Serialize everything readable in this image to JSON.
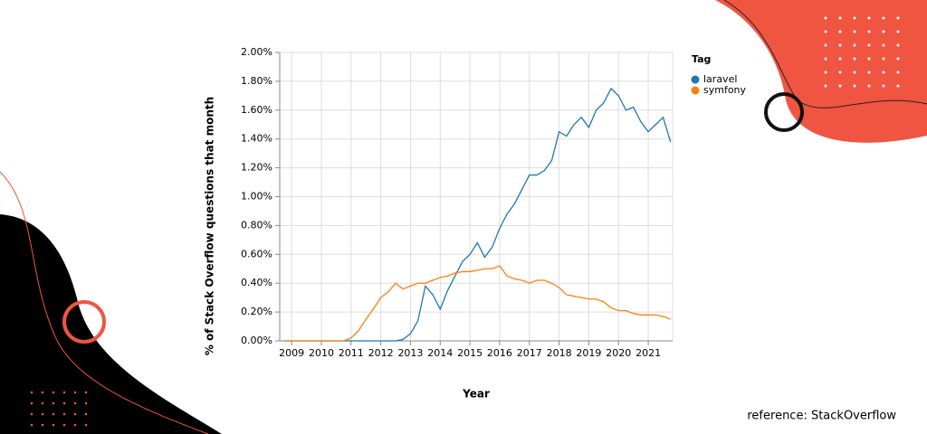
{
  "chart_data": {
    "type": "line",
    "y_label": "% of Stack Overflow questions that month",
    "x_label": "Year",
    "legend_title": "Tag",
    "legend_position": "right",
    "grid": true,
    "x": [
      2008.75,
      2009,
      2009.25,
      2009.5,
      2009.75,
      2010,
      2010.25,
      2010.5,
      2010.75,
      2011,
      2011.25,
      2011.5,
      2011.75,
      2012,
      2012.25,
      2012.5,
      2012.75,
      2013,
      2013.25,
      2013.5,
      2013.75,
      2014,
      2014.25,
      2014.5,
      2014.75,
      2015,
      2015.25,
      2015.5,
      2015.75,
      2016,
      2016.25,
      2016.5,
      2016.75,
      2017,
      2017.25,
      2017.5,
      2017.75,
      2018,
      2018.25,
      2018.5,
      2018.75,
      2019,
      2019.25,
      2019.5,
      2019.75,
      2020,
      2020.25,
      2020.5,
      2020.75,
      2021,
      2021.25,
      2021.5,
      2021.75
    ],
    "series": [
      {
        "name": "laravel",
        "color": "#1f77b4",
        "values": [
          0,
          0,
          0,
          0,
          0,
          0,
          0,
          0,
          0,
          0,
          0,
          0,
          0,
          0,
          0,
          0,
          0.01,
          0.05,
          0.14,
          0.38,
          0.32,
          0.22,
          0.35,
          0.45,
          0.55,
          0.6,
          0.68,
          0.58,
          0.65,
          0.78,
          0.88,
          0.95,
          1.05,
          1.15,
          1.15,
          1.18,
          1.25,
          1.45,
          1.42,
          1.5,
          1.55,
          1.48,
          1.6,
          1.65,
          1.75,
          1.7,
          1.6,
          1.62,
          1.52,
          1.45,
          1.5,
          1.55,
          1.38
        ]
      },
      {
        "name": "symfony",
        "color": "#ff7f0e",
        "values": [
          0,
          0,
          0,
          0,
          0,
          0,
          0,
          0,
          0,
          0.02,
          0.07,
          0.15,
          0.22,
          0.3,
          0.34,
          0.4,
          0.36,
          0.38,
          0.4,
          0.4,
          0.42,
          0.44,
          0.45,
          0.47,
          0.48,
          0.48,
          0.49,
          0.5,
          0.5,
          0.52,
          0.45,
          0.43,
          0.42,
          0.4,
          0.42,
          0.42,
          0.4,
          0.37,
          0.32,
          0.31,
          0.3,
          0.29,
          0.29,
          0.27,
          0.23,
          0.21,
          0.21,
          0.19,
          0.18,
          0.18,
          0.18,
          0.17,
          0.15
        ]
      }
    ],
    "xlim": [
      2008.6,
      2021.82
    ],
    "xticks": [
      2009,
      2010,
      2011,
      2012,
      2013,
      2014,
      2015,
      2016,
      2017,
      2018,
      2019,
      2020,
      2021
    ],
    "ylim": [
      0,
      2
    ],
    "yticks": [
      {
        "value": 0,
        "label": "0.00%"
      },
      {
        "value": 0.2,
        "label": "0.20%"
      },
      {
        "value": 0.4,
        "label": "0.40%"
      },
      {
        "value": 0.6,
        "label": "0.60%"
      },
      {
        "value": 0.8,
        "label": "0.80%"
      },
      {
        "value": 1,
        "label": "1.00%"
      },
      {
        "value": 1.2,
        "label": "1.20%"
      },
      {
        "value": 1.4,
        "label": "1.40%"
      },
      {
        "value": 1.6,
        "label": "1.60%"
      },
      {
        "value": 1.8,
        "label": "1.80%"
      },
      {
        "value": 2,
        "label": "2.00%"
      }
    ]
  },
  "reference": "reference: StackOverflow"
}
